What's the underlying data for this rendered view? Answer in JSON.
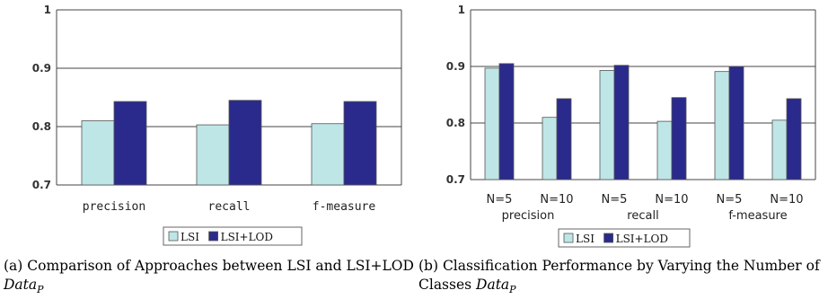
{
  "chart_data": [
    {
      "type": "bar",
      "categories": [
        "precision",
        "recall",
        "f-measure"
      ],
      "series": [
        {
          "name": "LSI",
          "values": [
            0.81,
            0.803,
            0.805
          ],
          "color": "#bfe6e6"
        },
        {
          "name": "LSI+LOD",
          "values": [
            0.843,
            0.845,
            0.843
          ],
          "color": "#2a2a8c"
        }
      ],
      "ylim": [
        0.7,
        1
      ],
      "yticks": [
        "0.7",
        "0.8",
        "0.9",
        "1"
      ],
      "grid": true,
      "legend": "bottom-center",
      "caption": "(a) Comparison of Approaches between LSI and LSI+LOD",
      "caption_var": "Data",
      "caption_sub": "P"
    },
    {
      "type": "bar",
      "categories": [
        "N=5",
        "N=10",
        "N=5",
        "N=10",
        "N=5",
        "N=10"
      ],
      "groups": [
        "precision",
        "recall",
        "f-measure"
      ],
      "series": [
        {
          "name": "LSI",
          "values": [
            0.897,
            0.81,
            0.893,
            0.803,
            0.891,
            0.805
          ],
          "color": "#bfe6e6"
        },
        {
          "name": "LSI+LOD",
          "values": [
            0.905,
            0.843,
            0.902,
            0.845,
            0.9,
            0.843
          ],
          "color": "#2a2a8c"
        }
      ],
      "ylim": [
        0.7,
        1
      ],
      "yticks": [
        "0.7",
        "0.8",
        "0.9",
        "1"
      ],
      "grid": true,
      "legend": "bottom-center",
      "caption": "(b) Classification Performance by Varying the Number of Classes",
      "caption_var": "Data",
      "caption_sub": "P"
    }
  ]
}
